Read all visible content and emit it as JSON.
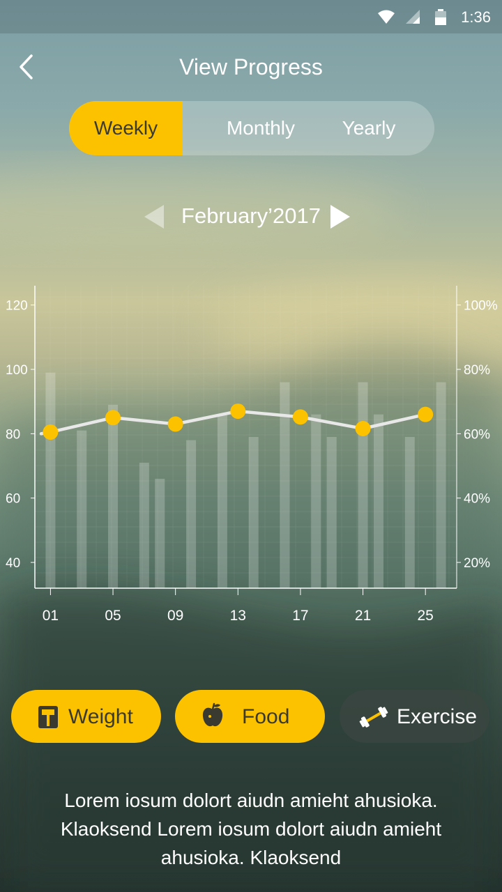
{
  "status_bar": {
    "time": "1:36",
    "wifi_icon": "wifi-icon",
    "signal_icon": "cell-signal-icon",
    "battery_icon": "battery-icon"
  },
  "header": {
    "title": "View Progress",
    "back_icon": "chevron-left-icon"
  },
  "tabs": [
    {
      "label": "Weekly",
      "active": true
    },
    {
      "label": "Monthly",
      "active": false
    },
    {
      "label": "Yearly",
      "active": false
    }
  ],
  "month_nav": {
    "label": "February’2017",
    "prev_icon": "triangle-left-icon",
    "next_icon": "triangle-right-icon"
  },
  "chart_data": {
    "type": "bar+line",
    "x_ticks": [
      "01",
      "05",
      "09",
      "13",
      "17",
      "21",
      "25"
    ],
    "left_axis": {
      "ticks": [
        "120",
        "100",
        "80",
        "60",
        "40"
      ],
      "ylim": [
        32,
        126
      ]
    },
    "right_axis": {
      "ticks": [
        "100%",
        "80%",
        "60%",
        "40%",
        "20%"
      ]
    },
    "bars": {
      "x": [
        1,
        3,
        5,
        7,
        8,
        10,
        12,
        14,
        16,
        18,
        19,
        21,
        22,
        24,
        26
      ],
      "values": [
        99,
        81,
        89,
        71,
        66,
        78,
        86,
        79,
        96,
        86,
        79,
        96,
        86,
        79,
        96
      ]
    },
    "line": {
      "x": [
        1,
        5,
        9,
        13,
        17,
        21,
        25
      ],
      "values": [
        80.5,
        85,
        83,
        87,
        85.2,
        81.6,
        86
      ],
      "line_start_value": 80
    },
    "colors": {
      "accent": "#fcc200",
      "line": "#e8e8e8",
      "bar": "rgba(255,255,255,0.22)"
    }
  },
  "chips": [
    {
      "label": "Weight",
      "icon": "scale-icon",
      "active": true
    },
    {
      "label": "Food",
      "icon": "apple-icon",
      "active": true
    },
    {
      "label": "Exercise",
      "icon": "dumbbell-icon",
      "active": false
    }
  ],
  "description": "Lorem iosum dolort aiudn amieht ahusioka. Klaoksend Lorem iosum dolort aiudn amieht ahusioka. Klaoksend"
}
